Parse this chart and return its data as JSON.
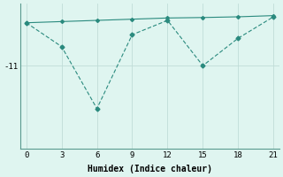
{
  "x": [
    0,
    3,
    6,
    9,
    12,
    15,
    18,
    21
  ],
  "line1": [
    -9.2,
    -9.15,
    -9.1,
    -9.05,
    -9.0,
    -8.98,
    -8.95,
    -8.9
  ],
  "line2": [
    -9.2,
    -10.2,
    -12.8,
    -9.7,
    -9.1,
    -11.0,
    -9.85,
    -8.95
  ],
  "line_color": "#2a8a7e",
  "bg_color": "#dff5f0",
  "grid_color": "#c0ddd8",
  "xlabel": "Humidex (Indice chaleur)",
  "ytick_labels": [
    "-11"
  ],
  "ytick_values": [
    -11
  ],
  "xlim": [
    -0.5,
    21.5
  ],
  "ylim": [
    -14.5,
    -8.4
  ]
}
